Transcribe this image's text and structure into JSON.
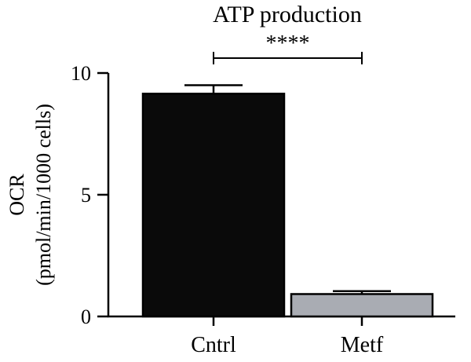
{
  "chart_data": {
    "type": "bar",
    "title": "ATP production",
    "ylabel_line1": "OCR",
    "ylabel_line2": "(pmol/min/1000 cells)",
    "categories": [
      "Cntrl",
      "Metf"
    ],
    "values": [
      9.15,
      0.92
    ],
    "errors": [
      0.35,
      0.12
    ],
    "bar_colors": [
      "#0a0a0a",
      "#a9acb3"
    ],
    "ylim": [
      0,
      10
    ],
    "yticks": [
      0,
      5,
      10
    ],
    "ytick_labels": [
      "0",
      "5",
      "10"
    ],
    "significance": {
      "from": "Cntrl",
      "to": "Metf",
      "label": "****"
    },
    "grid": false,
    "legend": "none"
  }
}
